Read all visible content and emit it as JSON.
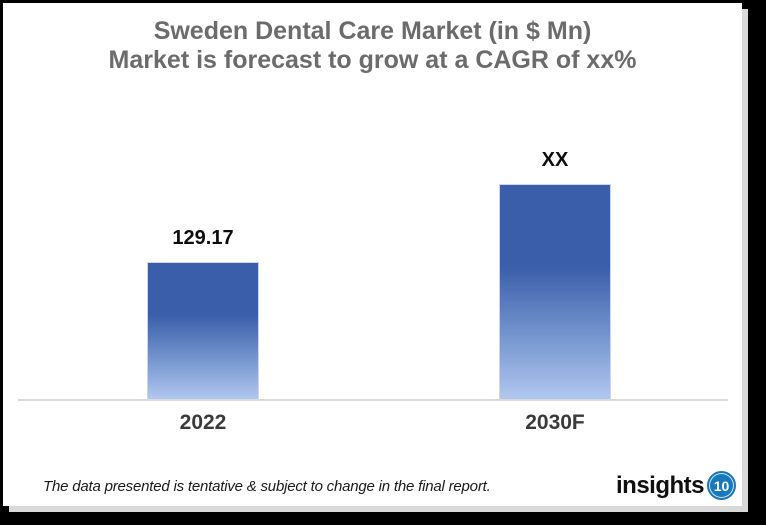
{
  "chart_data": {
    "type": "bar",
    "title": "Sweden Dental Care Market (in $ Mn)",
    "subtitle": "Market is forecast to grow at a CAGR of xx%",
    "categories": [
      "2022",
      "2030F"
    ],
    "values": [
      129.17,
      null
    ],
    "value_labels": [
      "129.17",
      "XX"
    ],
    "xlabel": "",
    "ylabel": "",
    "grid": false,
    "legend": false,
    "axis_line": "x-axis-only",
    "bar_style": "vertical gradient, dark blue top to light blue bottom"
  },
  "footer": {
    "disclaimer": "The data presented is tentative & subject to change in the final report.",
    "logo_text": "insights",
    "logo_badge": "10"
  },
  "colors": {
    "page_background": "#000000",
    "card_background": "#FFFFFF",
    "bar_gradient_top": "#3A5EA9",
    "bar_gradient_bottom": "#B1C7EE",
    "axis_line": "#D9D9D9",
    "title_text": "#6B6B6B",
    "value_label": "#0D0D0D",
    "category_label": "#3A3A3A",
    "logo_blue": "#1878BE",
    "card_shadow": "#D9D9D9"
  }
}
